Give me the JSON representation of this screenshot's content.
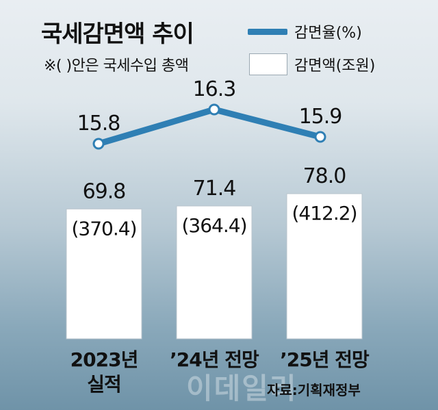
{
  "header": {
    "title": "국세감면액 추이",
    "note": "※(   )안은 국세수입 총액"
  },
  "legend": {
    "rate_label": "감면율(%)",
    "amount_label": "감면액(조원)",
    "rate_color": "#2f7fb4"
  },
  "chart_data": {
    "type": "bar",
    "categories": [
      "2023년\n실적",
      "’24년 전망",
      "’25년 전망"
    ],
    "series": [
      {
        "name": "감면액(조원)",
        "values": [
          69.8,
          71.4,
          78.0
        ],
        "totals": [
          "(370.4)",
          "(364.4)",
          "(412.2)"
        ]
      },
      {
        "name": "감면율(%)",
        "type": "line",
        "values": [
          15.8,
          16.3,
          15.9
        ]
      }
    ]
  },
  "footer": {
    "watermark": "이데일리",
    "source": "자료:기획재정부"
  }
}
